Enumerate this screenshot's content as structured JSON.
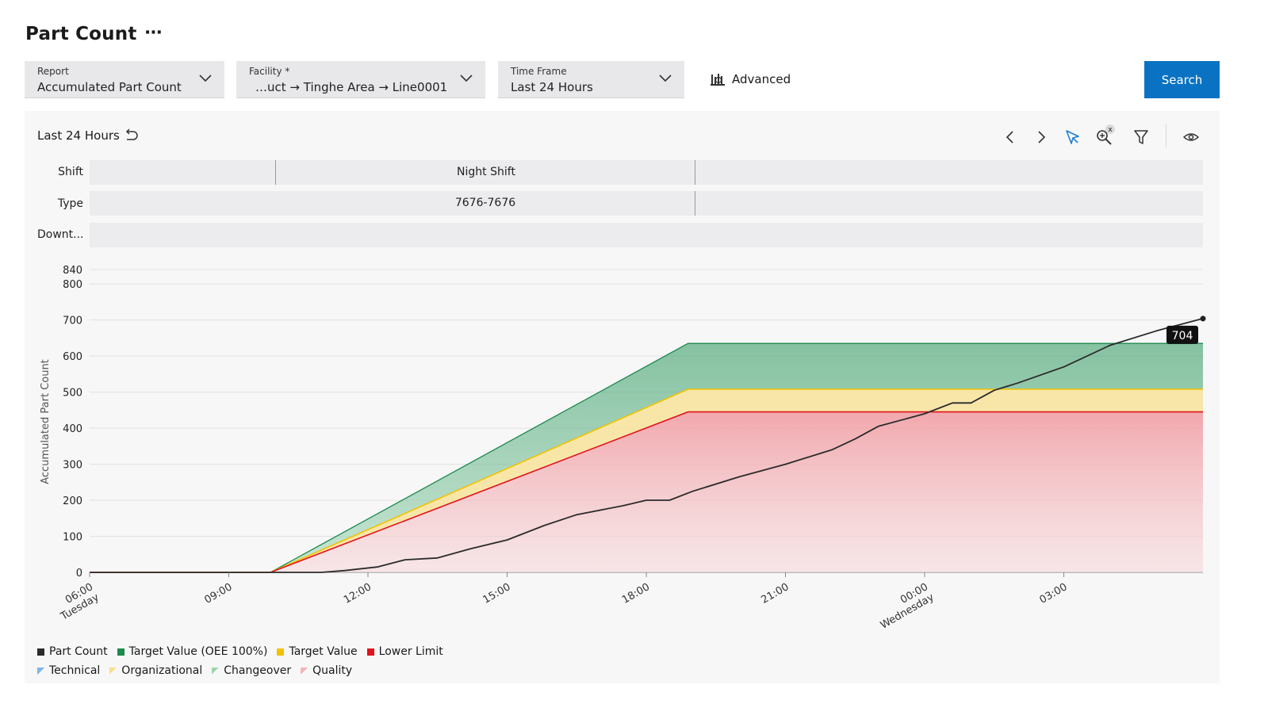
{
  "header": {
    "title": "Part Count",
    "more": "⋯"
  },
  "filters": {
    "report": {
      "label": "Report",
      "value": "Accumulated Part Count"
    },
    "facility": {
      "label": "Facility *",
      "value": "…uct → Tinghe Area → Line0001"
    },
    "timeframe": {
      "label": "Time Frame",
      "value": "Last 24 Hours"
    },
    "advanced_label": "Advanced",
    "search_label": "Search"
  },
  "panel": {
    "range_label": "Last 24 Hours",
    "lanes": {
      "shift": {
        "label": "Shift",
        "value": "Night Shift"
      },
      "type": {
        "label": "Type",
        "value": "7676-7676"
      },
      "downtime": {
        "label": "Downt..."
      }
    }
  },
  "colors": {
    "part_count": "#2b2b2b",
    "target_oee": "#1d8a4e",
    "target": "#f2c200",
    "lower_limit": "#e0131b",
    "accent": "#0a72c2"
  },
  "chart_data": {
    "type": "area",
    "ylabel": "Accumulated Part Count",
    "ylim": [
      0,
      840
    ],
    "yticks": [
      0,
      100,
      200,
      300,
      400,
      500,
      600,
      700,
      800,
      840
    ],
    "xlim": [
      6,
      30
    ],
    "xticks": [
      {
        "x": 6,
        "label": "06:00",
        "sub": "Tuesday"
      },
      {
        "x": 9,
        "label": "09:00",
        "sub": ""
      },
      {
        "x": 12,
        "label": "12:00",
        "sub": ""
      },
      {
        "x": 15,
        "label": "15:00",
        "sub": ""
      },
      {
        "x": 18,
        "label": "18:00",
        "sub": ""
      },
      {
        "x": 21,
        "label": "21:00",
        "sub": ""
      },
      {
        "x": 24,
        "label": "00:00",
        "sub": "Wednesday"
      },
      {
        "x": 27,
        "label": "03:00",
        "sub": ""
      }
    ],
    "grid": true,
    "series": [
      {
        "name": "Target Value (OEE 100%)",
        "x": [
          6,
          9.9,
          18.9,
          30
        ],
        "y": [
          0,
          0,
          635,
          635
        ]
      },
      {
        "name": "Target Value",
        "x": [
          6,
          9.9,
          18.9,
          30
        ],
        "y": [
          0,
          0,
          508,
          508
        ]
      },
      {
        "name": "Lower Limit",
        "x": [
          6,
          9.9,
          18.9,
          30
        ],
        "y": [
          0,
          0,
          445,
          445
        ]
      },
      {
        "name": "Part Count",
        "x": [
          6,
          11,
          11.5,
          12.2,
          12.8,
          13.5,
          14.2,
          15,
          15.8,
          16.5,
          17.5,
          18,
          18.5,
          19,
          20,
          21,
          22,
          22.5,
          23,
          24,
          24.6,
          25,
          25.5,
          26,
          27,
          28,
          29,
          30
        ],
        "y": [
          0,
          0,
          5,
          15,
          35,
          40,
          65,
          90,
          130,
          160,
          185,
          200,
          200,
          225,
          265,
          300,
          340,
          370,
          405,
          440,
          470,
          470,
          505,
          525,
          570,
          630,
          670,
          704
        ]
      }
    ],
    "point_label": {
      "x": 30,
      "y": 704,
      "text": "704"
    },
    "legend": {
      "position": "bottom-left",
      "row1": [
        {
          "name": "Part Count",
          "color": "#2b2b2b"
        },
        {
          "name": "Target Value (OEE 100%)",
          "color": "#1d8a4e"
        },
        {
          "name": "Target Value",
          "color": "#f2c200"
        },
        {
          "name": "Lower Limit",
          "color": "#e0131b"
        }
      ],
      "row2": [
        {
          "name": "Technical",
          "color": "#7fb6e8"
        },
        {
          "name": "Organizational",
          "color": "#f7de8a"
        },
        {
          "name": "Changeover",
          "color": "#9fd6ac"
        },
        {
          "name": "Quality",
          "color": "#f4b4b8"
        }
      ]
    }
  }
}
